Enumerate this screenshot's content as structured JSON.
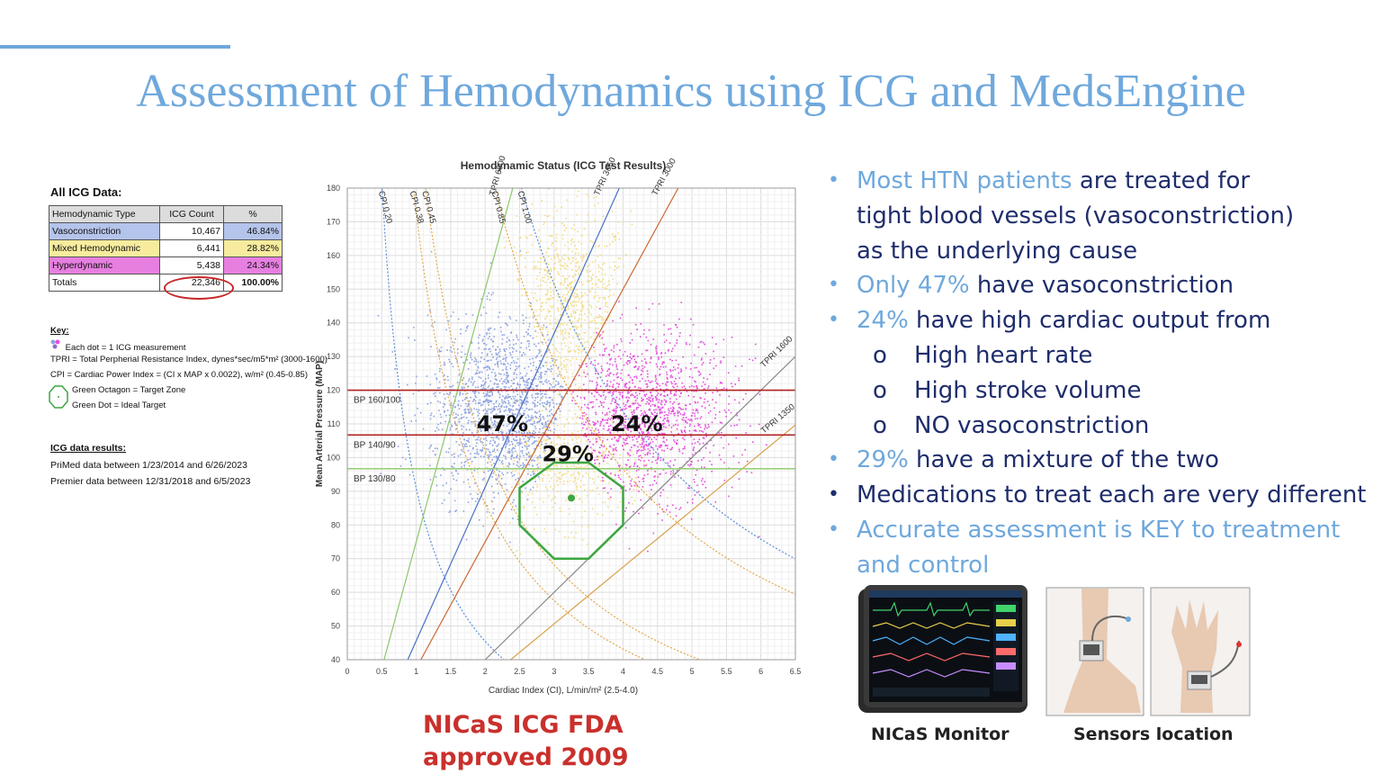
{
  "title": "Assessment of Hemodynamics using ICG and MedsEngine",
  "table": {
    "title": "All ICG Data:",
    "headers": [
      "Hemodynamic Type",
      "ICG Count",
      "%"
    ],
    "rows": [
      [
        "Vasoconstriction",
        "10,467",
        "46.84%"
      ],
      [
        "Mixed Hemodynamic",
        "6,441",
        "28.82%"
      ],
      [
        "Hyperdynamic",
        "5,438",
        "24.34%"
      ],
      [
        "Totals",
        "22,346",
        "100.00%"
      ]
    ]
  },
  "key": {
    "heading": "Key:",
    "dot": "Each dot = 1 ICG measurement",
    "tpri": "TPRI = Total Perpherial Resistance Index, dynes*sec/m5*m² (3000-1600)",
    "cpi": "CPI = Cardiac Power Index = (CI x MAP x 0.0022), w/m² (0.45-0.85)",
    "octagon": "Green Octagon = Target Zone",
    "gdot": "Green Dot = Ideal Target"
  },
  "results": {
    "heading": "ICG data results:",
    "line1": "PriMed data between 1/23/2014 and 6/26/2023",
    "line2": "Premier data between 12/31/2018 and 6/5/2023"
  },
  "chart_data": {
    "type": "scatter",
    "title": "Hemodynamic Status (ICG Test Results)",
    "xlabel": "Cardiac Index (CI), L/min/m² (2.5-4.0)",
    "ylabel": "Mean Arterial Pressure (MAP)",
    "xlim": [
      0,
      6.5
    ],
    "ylim": [
      40,
      180
    ],
    "xticks": [
      "0",
      "0.5",
      "1",
      "1.5",
      "2",
      "2.5",
      "3",
      "3.5",
      "4",
      "4.5",
      "5",
      "5.5",
      "6",
      "6.5"
    ],
    "yticks": [
      "40",
      "50",
      "60",
      "70",
      "80",
      "90",
      "100",
      "110",
      "120",
      "130",
      "140",
      "150",
      "160",
      "170",
      "180"
    ],
    "grid": true,
    "series": [
      {
        "name": "Vasoconstriction",
        "color": "#8ea3e0",
        "percent": "47%"
      },
      {
        "name": "Mixed Hemodynamic",
        "color": "#f2dc86",
        "percent": "29%"
      },
      {
        "name": "Hyperdynamic",
        "color": "#e44fdc",
        "percent": "24%"
      }
    ],
    "bp_lines": [
      {
        "label": "BP 160/100",
        "map": 120,
        "color": "#b22222"
      },
      {
        "label": "BP 140/90",
        "map": 106.7,
        "color": "#b22222"
      },
      {
        "label": "BP 130/80",
        "map": 96.7,
        "color": "#9bd07a"
      }
    ],
    "cpi_curves": [
      {
        "label": "CPI 0.20",
        "value": 0.2,
        "color": "#5b8fd6"
      },
      {
        "label": "CPI 0.38",
        "value": 0.38,
        "color": "#e3a84a"
      },
      {
        "label": "CPI 0.45",
        "value": 0.45,
        "color": "#e3a84a"
      },
      {
        "label": "CPI 0.85",
        "value": 0.85,
        "color": "#e3a84a"
      },
      {
        "label": "CPI 1.00",
        "value": 1.0,
        "color": "#5b8fd6"
      }
    ],
    "tpri_lines": [
      {
        "label": "TPRI 6000",
        "value": 6000,
        "color": "#8cc76a"
      },
      {
        "label": "TPRI 3650",
        "value": 3650,
        "color": "#4a6fc7"
      },
      {
        "label": "TPRI 3000",
        "value": 3000,
        "color": "#c96a32"
      },
      {
        "label": "TPRI 1600",
        "value": 1600,
        "color": "#888888"
      },
      {
        "label": "TPRI 1350",
        "value": 1350,
        "color": "#d9a24a"
      }
    ],
    "target_zone": [
      [
        2.5,
        80
      ],
      [
        2.5,
        91
      ],
      [
        3.0,
        98.5
      ],
      [
        3.5,
        98.5
      ],
      [
        4.0,
        91
      ],
      [
        4.0,
        80
      ],
      [
        3.5,
        70
      ],
      [
        3.0,
        70
      ]
    ],
    "ideal_target": [
      3.25,
      88
    ]
  },
  "bullets": [
    {
      "accent": "Most HTN patients",
      "rest": " are treated for",
      "sub": false,
      "accent_dot": true
    },
    {
      "accent": "",
      "rest": "tight blood vessels (vasoconstriction)",
      "sub": false,
      "nodot": true
    },
    {
      "accent": "",
      "rest": "as the underlying cause",
      "sub": false,
      "nodot": true
    },
    {
      "accent": "Only 47%",
      "rest": " have vasoconstriction",
      "sub": false,
      "accent_dot": true
    },
    {
      "accent": "24%",
      "rest": " have high cardiac output from",
      "sub": false,
      "accent_dot": true
    },
    {
      "accent": "",
      "rest": "High heart rate",
      "sub": true
    },
    {
      "accent": "",
      "rest": "High stroke volume",
      "sub": true
    },
    {
      "accent": "",
      "rest": "NO vasoconstriction",
      "sub": true
    },
    {
      "accent": "29%",
      "rest": " have a mixture of the two",
      "sub": false,
      "accent_dot": true
    },
    {
      "accent": "",
      "rest": "Medications to treat each are very different",
      "sub": false
    },
    {
      "accent": "Accurate assessment is KEY to treatment",
      "rest": "",
      "sub": false,
      "accent_dot": true
    },
    {
      "accent": "and control",
      "rest": "",
      "sub": false,
      "nodot": true
    }
  ],
  "fda_line1": "NICaS ICG FDA",
  "fda_line2": "approved 2009",
  "monitor_caption": "NICaS Monitor",
  "sensors_caption": "Sensors location"
}
